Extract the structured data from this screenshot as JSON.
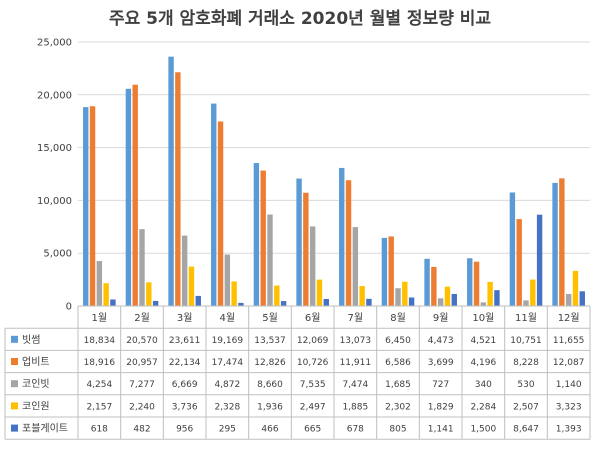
{
  "chart_data": {
    "type": "bar",
    "title": "주요 5개 암호화폐 거래소 2020년 월별 정보량 비교",
    "categories": [
      "1월",
      "2월",
      "3월",
      "4월",
      "5월",
      "6월",
      "7월",
      "8월",
      "9월",
      "10월",
      "11월",
      "12월"
    ],
    "ylim": [
      0,
      25000
    ],
    "yticks": [
      "0",
      "5,000",
      "10,000",
      "15,000",
      "20,000",
      "25,000"
    ],
    "ytick_values": [
      0,
      5000,
      10000,
      15000,
      20000,
      25000
    ],
    "grid": true,
    "legend": "data-table",
    "series": [
      {
        "name": "빗썸",
        "color": "#5b9bd5",
        "values": [
          18834,
          20570,
          23611,
          19169,
          13537,
          12069,
          13073,
          6450,
          4473,
          4521,
          10751,
          11655
        ],
        "labels": [
          "18,834",
          "20,570",
          "23,611",
          "19,169",
          "13,537",
          "12,069",
          "13,073",
          "6,450",
          "4,473",
          "4,521",
          "10,751",
          "11,655"
        ]
      },
      {
        "name": "업비트",
        "color": "#ed7d31",
        "values": [
          18916,
          20957,
          22134,
          17474,
          12826,
          10726,
          11911,
          6586,
          3699,
          4196,
          8228,
          12087
        ],
        "labels": [
          "18,916",
          "20,957",
          "22,134",
          "17,474",
          "12,826",
          "10,726",
          "11,911",
          "6,586",
          "3,699",
          "4,196",
          "8,228",
          "12,087"
        ]
      },
      {
        "name": "코인빗",
        "color": "#a5a5a5",
        "values": [
          4254,
          7277,
          6669,
          4872,
          8660,
          7535,
          7474,
          1685,
          727,
          340,
          530,
          1140
        ],
        "labels": [
          "4,254",
          "7,277",
          "6,669",
          "4,872",
          "8,660",
          "7,535",
          "7,474",
          "1,685",
          "727",
          "340",
          "530",
          "1,140"
        ]
      },
      {
        "name": "코인원",
        "color": "#ffc000",
        "values": [
          2157,
          2240,
          3736,
          2328,
          1936,
          2497,
          1885,
          2302,
          1829,
          2284,
          2507,
          3323
        ],
        "labels": [
          "2,157",
          "2,240",
          "3,736",
          "2,328",
          "1,936",
          "2,497",
          "1,885",
          "2,302",
          "1,829",
          "2,284",
          "2,507",
          "3,323"
        ]
      },
      {
        "name": "포블게이트",
        "color": "#4472c4",
        "values": [
          618,
          482,
          956,
          295,
          466,
          665,
          678,
          805,
          1141,
          1500,
          8647,
          1393
        ],
        "labels": [
          "618",
          "482",
          "956",
          "295",
          "466",
          "665",
          "678",
          "805",
          "1,141",
          "1,500",
          "8,647",
          "1,393"
        ]
      }
    ]
  }
}
